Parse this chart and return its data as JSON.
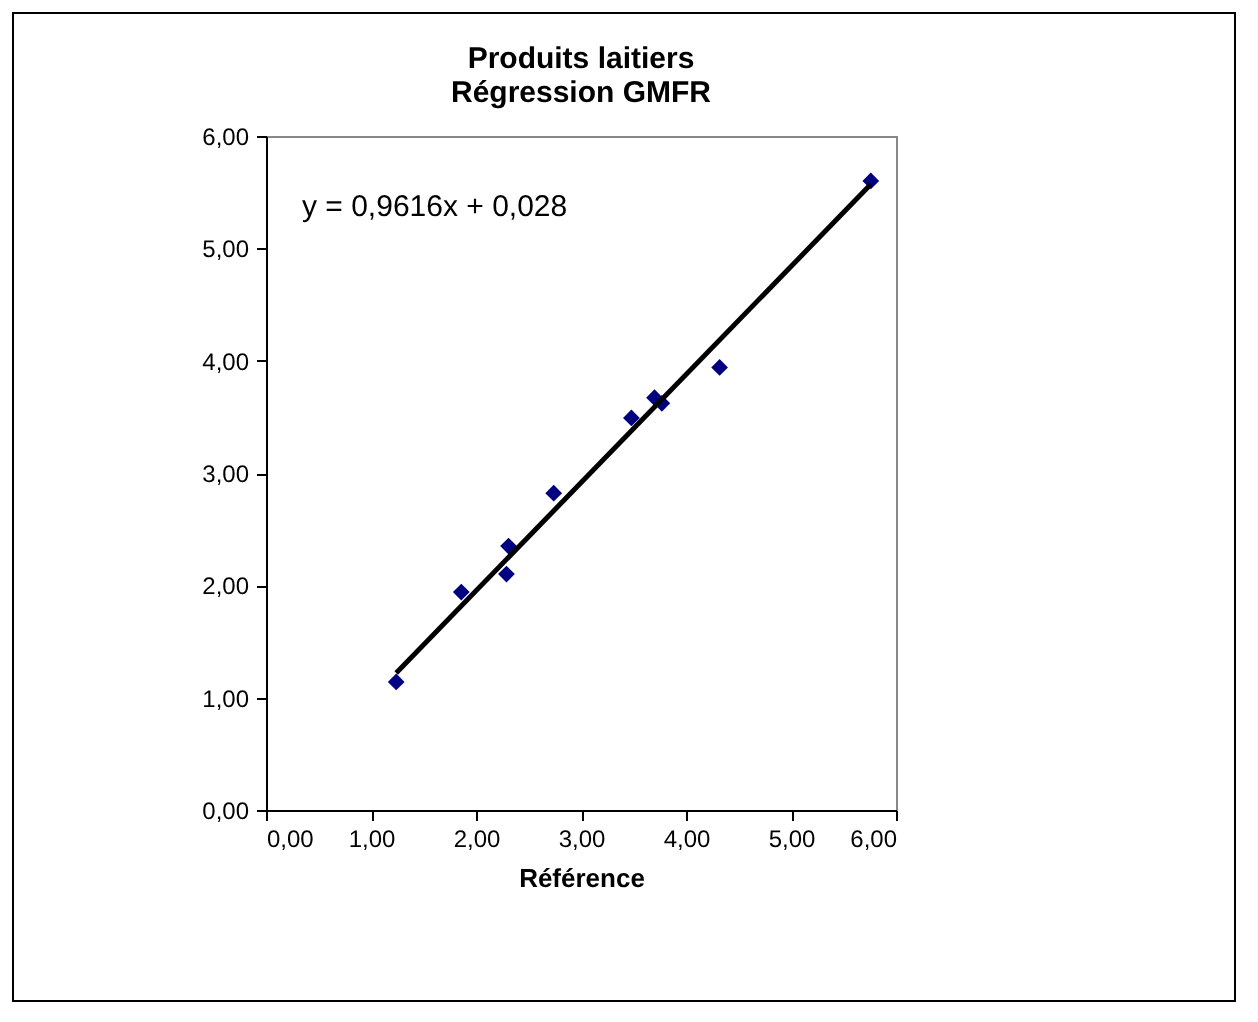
{
  "chart_data": {
    "type": "scatter",
    "title": "Produits laitiers\nRégression GMFR",
    "xlabel": "Référence",
    "annotations": [
      "y = 0,9616x + 0,028"
    ],
    "x": [
      1.24,
      1.86,
      2.29,
      2.31,
      2.74,
      3.48,
      3.7,
      3.77,
      4.32,
      5.76
    ],
    "series": [
      {
        "color": "#000080",
        "values": [
          1.14,
          1.94,
          2.1,
          2.35,
          2.82,
          3.49,
          3.67,
          3.62,
          3.94,
          5.6
        ]
      },
      {
        "type": "line",
        "marker": "none",
        "color": "#000000",
        "x": [
          1.24,
          5.76
        ],
        "values": [
          1.22,
          5.57
        ]
      }
    ],
    "marker": "diamond",
    "grid": false,
    "xlim": [
      0,
      6
    ],
    "ylim": [
      0,
      6
    ],
    "xticks": [
      {
        "value": 0,
        "label": "0,00"
      },
      {
        "value": 1,
        "label": "1,00"
      },
      {
        "value": 2,
        "label": "2,00"
      },
      {
        "value": 3,
        "label": "3,00"
      },
      {
        "value": 4,
        "label": "4,00"
      },
      {
        "value": 5,
        "label": "5,00"
      },
      {
        "value": 6,
        "label": "6,00"
      }
    ],
    "yticks": [
      {
        "value": 0,
        "label": "0,00"
      },
      {
        "value": 1,
        "label": "1,00"
      },
      {
        "value": 2,
        "label": "2,00"
      },
      {
        "value": 3,
        "label": "3,00"
      },
      {
        "value": 4,
        "label": "4,00"
      },
      {
        "value": 5,
        "label": "5,00"
      },
      {
        "value": 6,
        "label": "6,00"
      }
    ]
  }
}
